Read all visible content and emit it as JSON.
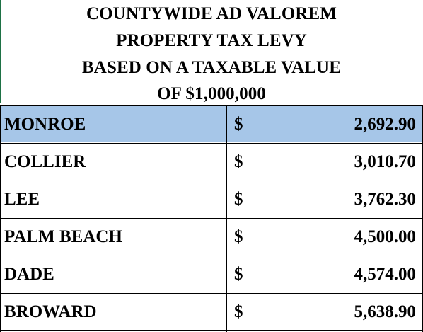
{
  "title_lines": [
    "COUNTYWIDE AD VALOREM",
    "PROPERTY TAX LEVY",
    "BASED ON A TAXABLE VALUE",
    "OF $1,000,000"
  ],
  "rows": [
    {
      "county": "MONROE",
      "currency": "$",
      "amount": "2,692.90",
      "highlighted": true
    },
    {
      "county": "COLLIER",
      "currency": "$",
      "amount": "3,010.70",
      "highlighted": false
    },
    {
      "county": "LEE",
      "currency": "$",
      "amount": "3,762.30",
      "highlighted": false
    },
    {
      "county": "PALM BEACH",
      "currency": "$",
      "amount": "4,500.00",
      "highlighted": false
    },
    {
      "county": "DADE",
      "currency": "$",
      "amount": "4,574.00",
      "highlighted": false
    },
    {
      "county": "BROWARD",
      "currency": "$",
      "amount": "5,638.90",
      "highlighted": false
    }
  ],
  "colors": {
    "highlight_fill": "#a6c6e8",
    "grid_border": "#000000",
    "sheet_edge": "#1e7145"
  }
}
